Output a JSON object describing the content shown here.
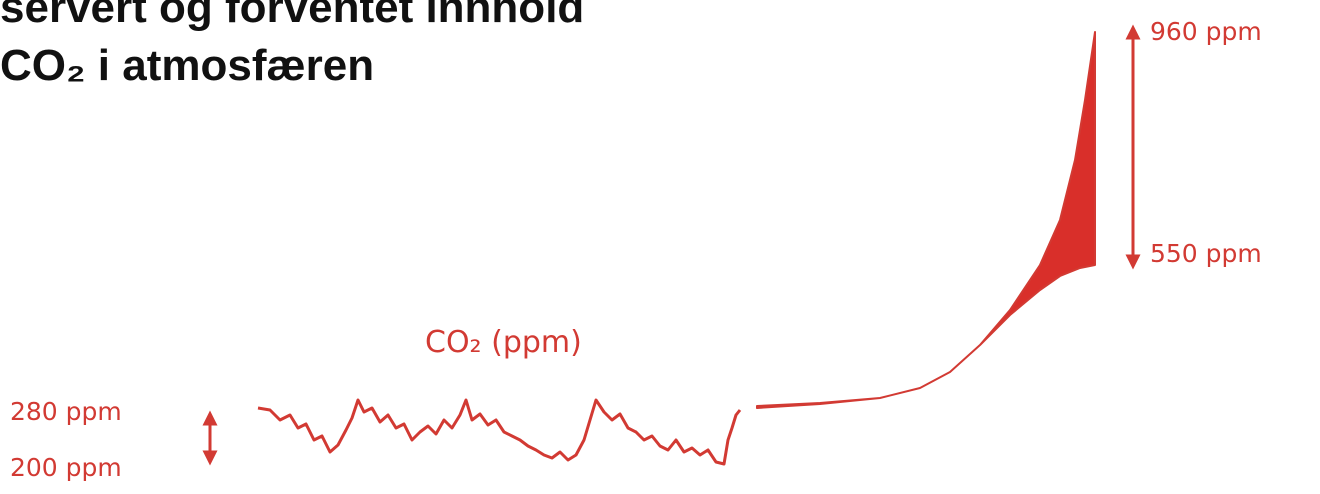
{
  "title": {
    "line1": "servert og forventet innhold",
    "line2": "CO₂ i atmosfæren"
  },
  "labels": {
    "curve": "CO₂ (ppm)",
    "low_top": "280 ppm",
    "low_bottom": "200 ppm",
    "high_top": "960 ppm",
    "high_bottom": "550 ppm"
  }
}
